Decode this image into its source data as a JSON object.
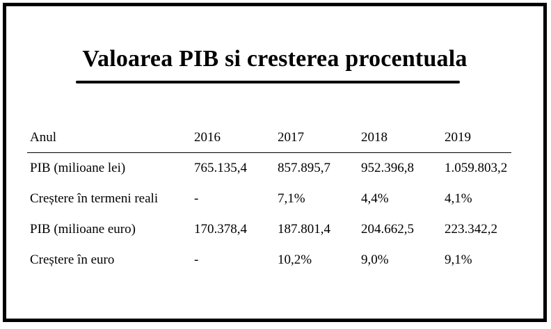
{
  "title": "Valoarea PIB si cresterea procentuala",
  "table": {
    "header": [
      "Anul",
      "2016",
      "2017",
      "2018",
      "2019"
    ],
    "rows": [
      [
        "PIB (milioane lei)",
        "765.135,4",
        "857.895,7",
        "952.396,8",
        "1.059.803,2"
      ],
      [
        "Creștere în termeni reali",
        "-",
        "7,1%",
        "4,4%",
        "4,1%"
      ],
      [
        "PIB (milioane euro)",
        "170.378,4",
        "187.801,4",
        "204.662,5",
        "223.342,2"
      ],
      [
        "Creștere în euro",
        "-",
        "10,2%",
        "9,0%",
        "9,1%"
      ]
    ]
  }
}
